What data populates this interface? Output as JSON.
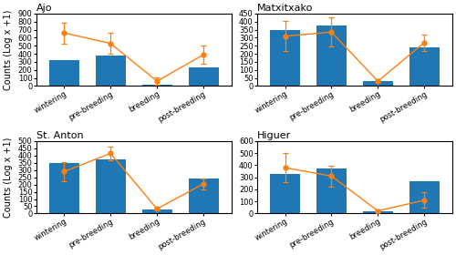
{
  "chart_data": [
    {
      "type": "bar",
      "title": "Ajo",
      "categories": [
        "wintering",
        "pre-breeding",
        "breeding",
        "post-breeding"
      ],
      "y_label": "Counts (Log x +1)",
      "ylim": [
        0,
        900
      ],
      "yticks": [
        0,
        100,
        200,
        300,
        400,
        500,
        600,
        700,
        800,
        900
      ],
      "grid": false,
      "series": [
        {
          "type": "bar",
          "values": [
            320,
            380,
            20,
            230
          ]
        },
        {
          "type": "line",
          "marker": "o",
          "values": [
            660,
            530,
            60,
            390
          ],
          "errors": [
            130,
            130,
            45,
            110
          ]
        }
      ]
    },
    {
      "type": "bar",
      "title": "Matxitxako",
      "categories": [
        "wintering",
        "pre-breeding",
        "breeding",
        "post-breeding"
      ],
      "ylim": [
        0,
        450
      ],
      "yticks": [
        0,
        50,
        100,
        150,
        200,
        250,
        300,
        350,
        400,
        450
      ],
      "grid": false,
      "series": [
        {
          "type": "bar",
          "values": [
            347,
            375,
            28,
            242
          ]
        },
        {
          "type": "line",
          "marker": "o",
          "values": [
            310,
            335,
            30,
            270
          ],
          "errors": [
            95,
            90,
            12,
            50
          ]
        }
      ]
    },
    {
      "type": "bar",
      "title": "St. Anton",
      "categories": [
        "wintering",
        "pre-breeding",
        "breeding",
        "post-breeding"
      ],
      "y_label": "Counts (Log x +1)",
      "ylim": [
        0,
        500
      ],
      "yticks": [
        0,
        50,
        100,
        150,
        200,
        250,
        300,
        350,
        400,
        450,
        500
      ],
      "grid": false,
      "series": [
        {
          "type": "bar",
          "values": [
            350,
            375,
            28,
            240
          ]
        },
        {
          "type": "line",
          "marker": "o",
          "values": [
            290,
            415,
            32,
            205
          ],
          "errors": [
            68,
            50,
            8,
            38
          ]
        }
      ]
    },
    {
      "type": "bar",
      "title": "Higuer",
      "categories": [
        "wintering",
        "pre-breeding",
        "breeding",
        "post-breeding"
      ],
      "ylim": [
        0,
        600
      ],
      "yticks": [
        0,
        100,
        200,
        300,
        400,
        500,
        600
      ],
      "grid": false,
      "series": [
        {
          "type": "bar",
          "values": [
            330,
            370,
            20,
            270
          ]
        },
        {
          "type": "line",
          "marker": "o",
          "values": [
            380,
            310,
            22,
            110
          ],
          "errors": [
            120,
            85,
            8,
            65
          ]
        }
      ]
    }
  ]
}
